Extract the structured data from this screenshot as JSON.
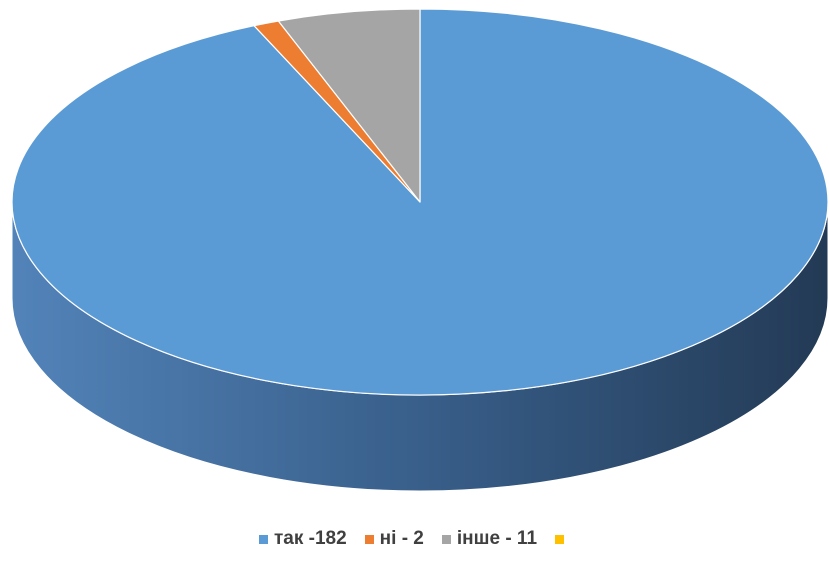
{
  "chart_data": {
    "type": "pie",
    "categories": [
      "так -182",
      "ні - 2",
      "інше - 11",
      ""
    ],
    "values": [
      182,
      2,
      11,
      0
    ],
    "colors": [
      "#5b9bd5",
      "#ed7d31",
      "#a5a5a5",
      "#ffc000"
    ],
    "title": "",
    "legend_position": "bottom",
    "style": "3d"
  }
}
